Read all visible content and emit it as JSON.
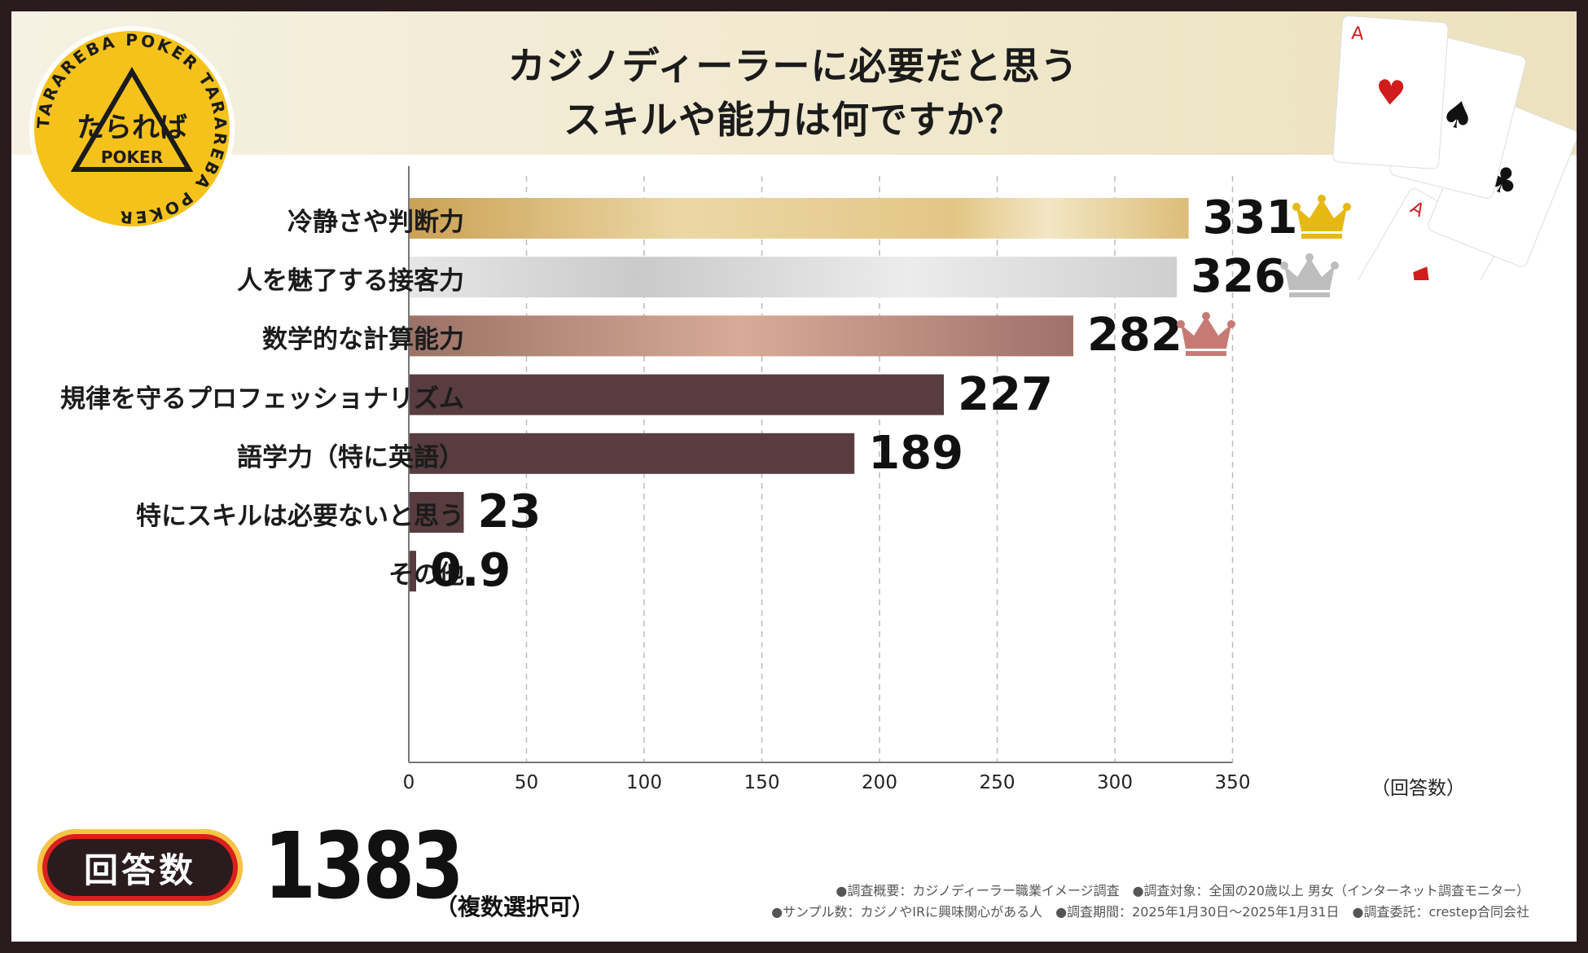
{
  "title_lines": [
    "カジノディーラーに必要だと思う",
    "スキルや能力は何ですか？"
  ],
  "logo": {
    "text_main": "たられば",
    "text_sub": "POKER",
    "ring_text": "TARAREBA POKER TARAREBA POKER",
    "color": "#f5c21b"
  },
  "chart_data": {
    "type": "bar",
    "orientation": "horizontal",
    "categories": [
      "冷静さや判断力",
      "人を魅了する接客力",
      "数学的な計算能力",
      "規律を守るプロフェッショナリズム",
      "語学力（特に英語）",
      "特にスキルは必要ないと思う",
      "その他"
    ],
    "values": [
      331,
      326,
      282,
      227,
      189,
      23,
      0.9
    ],
    "value_labels": [
      "331",
      "326",
      "282",
      "227",
      "189",
      "23",
      "0.9"
    ],
    "xlim": [
      0,
      350
    ],
    "xticks": [
      "0",
      "50",
      "100",
      "150",
      "200",
      "250",
      "300",
      "350"
    ],
    "xlabel": "（回答数）",
    "grid": "vertical dashed",
    "rank_badges": [
      "gold-crown",
      "silver-crown",
      "bronze-crown"
    ],
    "bar_colors": [
      "#d4ad62",
      "#d2d2d2",
      "#b98677",
      "#583c40",
      "#583c40",
      "#583c40",
      "#583c40"
    ],
    "crown_colors": [
      "#e6b812",
      "#bdbdbd",
      "#c77a74"
    ]
  },
  "summary": {
    "badge_label": "回答数",
    "total": "1383",
    "total_note": "（複数選択可）"
  },
  "footnotes": [
    "●調査概要：カジノディーラー職業イメージ調査　●調査対象：全国の20歳以上 男女（インターネット調査モニター）",
    "●サンプル数：カジノやIRに興味関心がある人　●調査期間：2025年1月30日～2025年1月31日　●調査委託：crestep合同会社"
  ]
}
